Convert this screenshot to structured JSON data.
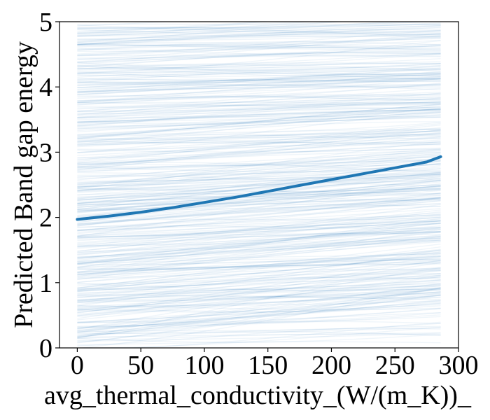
{
  "chart_data": {
    "type": "line",
    "title": "",
    "xlabel": "avg_thermal_conductivity_(W/(m_K))_",
    "ylabel": "Predicted Band gap energy",
    "xlim": [
      -14,
      300
    ],
    "ylim": [
      0,
      5
    ],
    "x_ticks": [
      0,
      50,
      100,
      150,
      200,
      250,
      300
    ],
    "y_ticks": [
      0,
      1,
      2,
      3,
      4,
      5
    ],
    "grid": false,
    "legend": "none",
    "colors": {
      "mean": "#1f77b4",
      "ice": "#1f77b4",
      "axes": "#000000"
    },
    "x_range": [
      0,
      286
    ],
    "ice_curve_count": 450,
    "mean_series": {
      "x": [
        0,
        25,
        50,
        75,
        100,
        125,
        150,
        175,
        200,
        225,
        250,
        275,
        286
      ],
      "y": [
        1.97,
        2.02,
        2.08,
        2.15,
        2.23,
        2.31,
        2.4,
        2.49,
        2.58,
        2.67,
        2.76,
        2.85,
        2.93
      ]
    }
  }
}
